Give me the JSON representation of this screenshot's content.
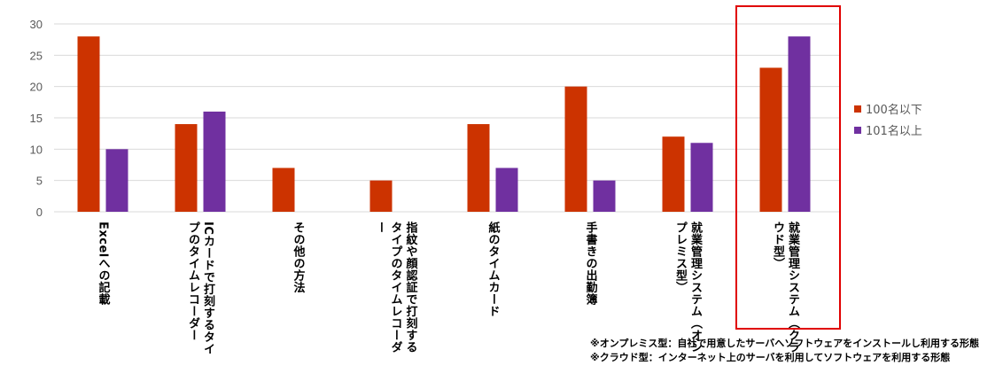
{
  "chart_data": {
    "type": "bar",
    "title": "",
    "xlabel": "",
    "ylabel": "",
    "ylim": [
      0,
      30
    ],
    "yticks": [
      0,
      5,
      10,
      15,
      20,
      25,
      30
    ],
    "grid": true,
    "legend_position": "right",
    "categories": [
      "Excelへの記載",
      "ICカードで打刻するタイプのタイムレコーダー",
      "その他の方法",
      "指紋や顔認証で打刻するタイプのタイムレコーダー",
      "紙のタイムカード",
      "手書きの出勤簿",
      "就業管理システム（オンプレミス型）",
      "就業管理システム（クラウド型）"
    ],
    "series": [
      {
        "name": "100名以下",
        "color": "#CC3300",
        "values": [
          28,
          14,
          7,
          5,
          14,
          20,
          12,
          23
        ]
      },
      {
        "name": "101名以上",
        "color": "#7030A0",
        "values": [
          10,
          16,
          0,
          0,
          7,
          5,
          11,
          28
        ]
      }
    ],
    "highlighted_category": "就業管理システム（クラウド型）",
    "highlight_color": "#E00000"
  },
  "notes": [
    "※オンプレミス型：自社で用意したサーバへソフトウェアをインストールし利用する形態",
    "※クラウド型：インターネット上のサーバを利用してソフトウェアを利用する形態"
  ]
}
